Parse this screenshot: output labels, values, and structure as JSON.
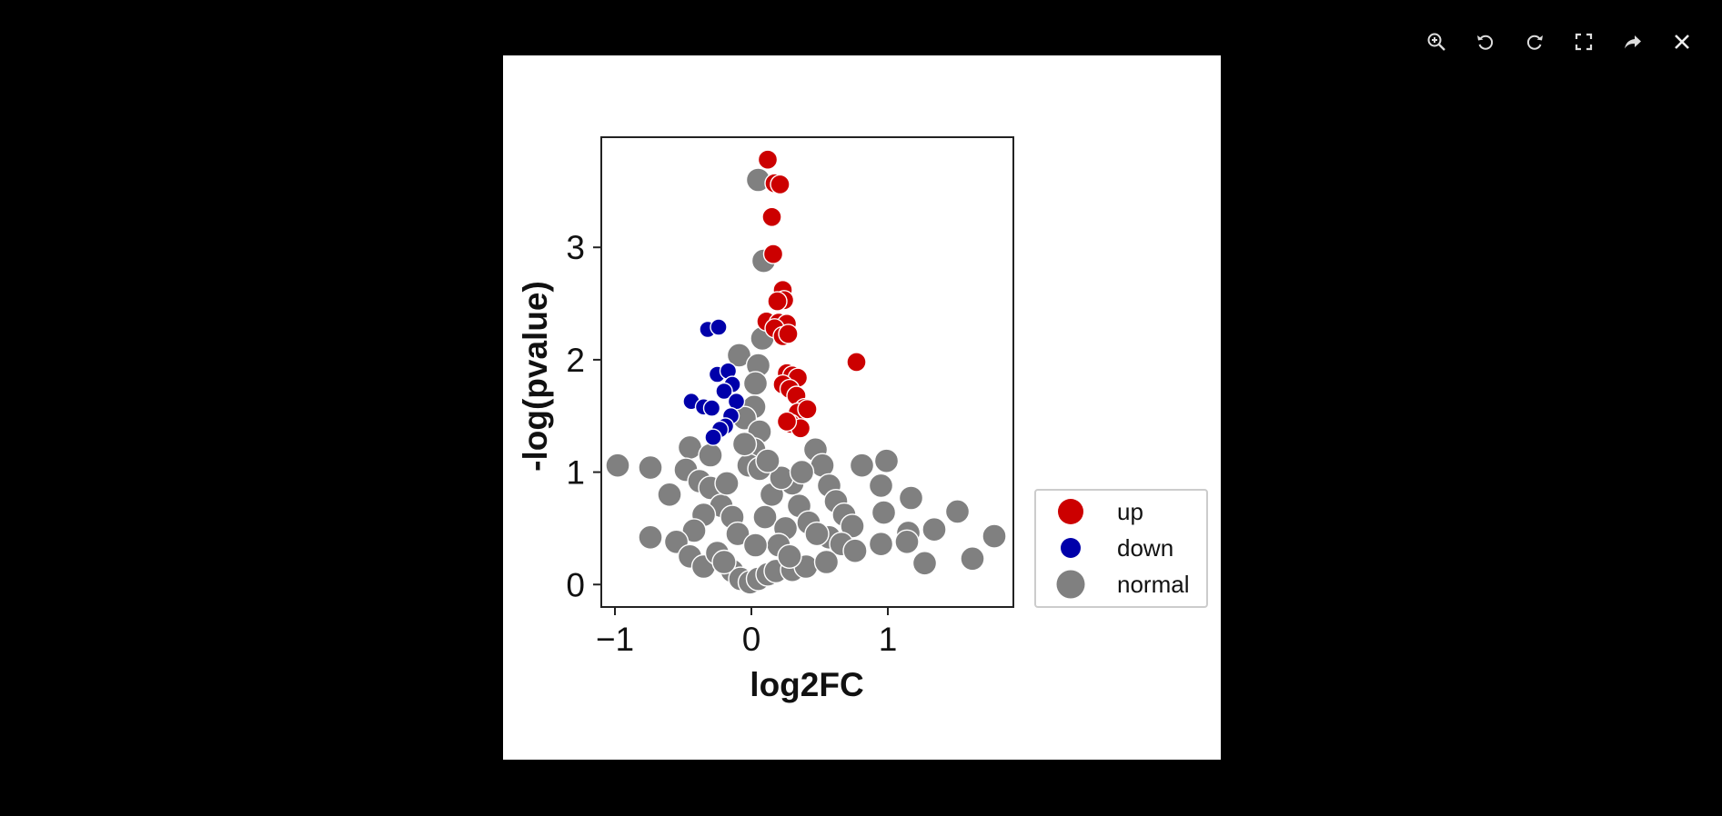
{
  "viewer": {
    "toolbar": [
      {
        "icon": "zoom-in-icon",
        "label": "Zoom in"
      },
      {
        "icon": "rotate-left-icon",
        "label": "Rotate left"
      },
      {
        "icon": "rotate-right-icon",
        "label": "Rotate right"
      },
      {
        "icon": "fullscreen-icon",
        "label": "Fullscreen"
      },
      {
        "icon": "share-icon",
        "label": "Share"
      },
      {
        "icon": "close-icon",
        "label": "Close"
      }
    ]
  },
  "chart_data": {
    "type": "scatter",
    "title": "",
    "xlabel": "log2FC",
    "ylabel": "-log(pvalue)",
    "xlim": [
      -1.1,
      1.92
    ],
    "ylim": [
      -0.2,
      3.98
    ],
    "xticks": [
      -1,
      0,
      1
    ],
    "xtick_labels": [
      "−1",
      "0",
      "1"
    ],
    "yticks": [
      0,
      1,
      2,
      3
    ],
    "ytick_labels": [
      "0",
      "1",
      "2",
      "3"
    ],
    "grid": false,
    "legend_position": "right-outside-bottom",
    "colors": {
      "up": "#cc0000",
      "down": "#0000aa",
      "normal": "#808080"
    },
    "series": [
      {
        "name": "up",
        "points": [
          [
            0.12,
            3.78
          ],
          [
            0.17,
            3.57
          ],
          [
            0.21,
            3.56
          ],
          [
            0.15,
            3.27
          ],
          [
            0.16,
            2.94
          ],
          [
            0.23,
            2.62
          ],
          [
            0.24,
            2.53
          ],
          [
            0.19,
            2.52
          ],
          [
            0.11,
            2.34
          ],
          [
            0.2,
            2.33
          ],
          [
            0.26,
            2.32
          ],
          [
            0.17,
            2.28
          ],
          [
            0.23,
            2.21
          ],
          [
            0.27,
            2.23
          ],
          [
            0.26,
            1.88
          ],
          [
            0.3,
            1.86
          ],
          [
            0.34,
            1.84
          ],
          [
            0.23,
            1.78
          ],
          [
            0.28,
            1.74
          ],
          [
            0.33,
            1.68
          ],
          [
            0.39,
            1.57
          ],
          [
            0.34,
            1.53
          ],
          [
            0.41,
            1.56
          ],
          [
            0.29,
            1.43
          ],
          [
            0.36,
            1.39
          ],
          [
            0.26,
            1.45
          ],
          [
            0.77,
            1.98
          ]
        ]
      },
      {
        "name": "down",
        "points": [
          [
            -0.32,
            2.27
          ],
          [
            -0.24,
            2.29
          ],
          [
            -0.25,
            1.87
          ],
          [
            -0.17,
            1.9
          ],
          [
            -0.14,
            1.78
          ],
          [
            -0.2,
            1.72
          ],
          [
            -0.11,
            1.63
          ],
          [
            -0.44,
            1.63
          ],
          [
            -0.35,
            1.58
          ],
          [
            -0.29,
            1.57
          ],
          [
            -0.15,
            1.5
          ],
          [
            -0.19,
            1.41
          ],
          [
            -0.23,
            1.38
          ],
          [
            -0.28,
            1.31
          ]
        ]
      },
      {
        "name": "normal",
        "points": [
          [
            0.05,
            3.6
          ],
          [
            0.09,
            2.88
          ],
          [
            0.08,
            2.19
          ],
          [
            -0.09,
            2.04
          ],
          [
            0.05,
            1.95
          ],
          [
            0.03,
            1.79
          ],
          [
            0.02,
            1.58
          ],
          [
            -0.05,
            1.48
          ],
          [
            0.06,
            1.36
          ],
          [
            0.02,
            1.2
          ],
          [
            -0.02,
            1.06
          ],
          [
            0.06,
            1.03
          ],
          [
            -0.98,
            1.06
          ],
          [
            -0.74,
            1.04
          ],
          [
            -0.6,
            0.8
          ],
          [
            -0.45,
            1.22
          ],
          [
            -0.48,
            1.02
          ],
          [
            -0.38,
            0.92
          ],
          [
            -0.3,
            0.86
          ],
          [
            -0.22,
            0.7
          ],
          [
            -0.14,
            0.6
          ],
          [
            -0.35,
            0.62
          ],
          [
            -0.42,
            0.48
          ],
          [
            -0.55,
            0.38
          ],
          [
            -0.74,
            0.42
          ],
          [
            -0.45,
            0.25
          ],
          [
            -0.35,
            0.16
          ],
          [
            -0.25,
            0.28
          ],
          [
            -0.14,
            0.12
          ],
          [
            -0.08,
            0.05
          ],
          [
            -0.01,
            0.02
          ],
          [
            0.05,
            0.05
          ],
          [
            0.12,
            0.09
          ],
          [
            0.18,
            0.12
          ],
          [
            0.3,
            0.13
          ],
          [
            0.4,
            0.16
          ],
          [
            0.47,
            1.2
          ],
          [
            0.52,
            1.06
          ],
          [
            0.57,
            0.88
          ],
          [
            0.62,
            0.74
          ],
          [
            0.68,
            0.62
          ],
          [
            0.74,
            0.52
          ],
          [
            0.57,
            0.42
          ],
          [
            0.66,
            0.36
          ],
          [
            0.76,
            0.3
          ],
          [
            0.81,
            1.06
          ],
          [
            0.99,
            1.1
          ],
          [
            0.95,
            0.88
          ],
          [
            0.97,
            0.64
          ],
          [
            0.95,
            0.36
          ],
          [
            1.17,
            0.77
          ],
          [
            1.15,
            0.46
          ],
          [
            1.14,
            0.38
          ],
          [
            1.34,
            0.49
          ],
          [
            1.51,
            0.65
          ],
          [
            1.27,
            0.19
          ],
          [
            1.62,
            0.23
          ],
          [
            1.78,
            0.43
          ],
          [
            0.3,
            0.9
          ],
          [
            0.15,
            0.8
          ],
          [
            0.1,
            0.6
          ],
          [
            0.25,
            0.5
          ],
          [
            0.2,
            0.35
          ],
          [
            0.35,
            0.7
          ],
          [
            0.42,
            0.55
          ],
          [
            -0.1,
            0.45
          ],
          [
            -0.18,
            0.9
          ],
          [
            0.03,
            0.35
          ],
          [
            0.22,
            0.95
          ],
          [
            0.37,
            1.0
          ],
          [
            -0.3,
            1.15
          ],
          [
            -0.05,
            1.25
          ],
          [
            0.12,
            1.1
          ],
          [
            0.55,
            0.2
          ],
          [
            0.48,
            0.45
          ],
          [
            -0.2,
            0.2
          ],
          [
            0.28,
            0.25
          ]
        ]
      }
    ]
  }
}
